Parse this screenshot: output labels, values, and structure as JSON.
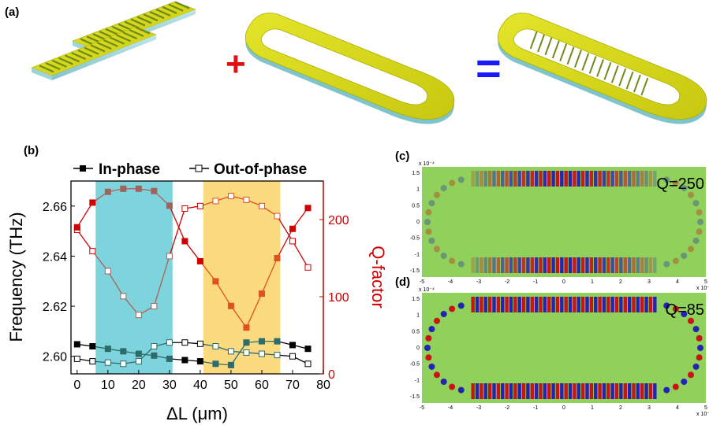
{
  "panels": {
    "a": "(a)",
    "b": "(b)",
    "c": "(c)",
    "d": "(d)"
  },
  "operators": {
    "plus": "+",
    "equals": "="
  },
  "colors": {
    "gold": "#d8d81a",
    "cyan_band": "#66cdd6",
    "yellow_band": "#fcd36a",
    "red_axis": "#d00000",
    "field_bg": "#8fd15a"
  },
  "chart_data": {
    "type": "line",
    "xlabel": "ΔL (μm)",
    "ylabel": "Frequency (THz)",
    "y2label": "Q-factor",
    "xlim": [
      -2,
      80
    ],
    "ylim": [
      2.593,
      2.67
    ],
    "y2lim": [
      0,
      250
    ],
    "xticks": [
      "0",
      "10",
      "20",
      "30",
      "40",
      "50",
      "60",
      "70",
      "80"
    ],
    "yticks": [
      "2.60",
      "2.62",
      "2.64",
      "2.66"
    ],
    "y2ticks": [
      "0",
      "100",
      "200"
    ],
    "legend": [
      "In-phase",
      "Out-of-phase"
    ],
    "x": [
      0,
      5,
      10,
      15,
      20,
      25,
      30,
      35,
      40,
      45,
      50,
      55,
      60,
      65,
      70,
      75
    ],
    "highlight_bands": [
      [
        6,
        31
      ],
      [
        41,
        66
      ]
    ],
    "series": [
      {
        "name": "In-phase",
        "axis": "left",
        "marker": "filled",
        "values": [
          2.6048,
          2.604,
          2.603,
          2.602,
          2.601,
          2.6003,
          2.599,
          2.5985,
          2.598,
          2.597,
          2.5965,
          2.6055,
          2.606,
          2.606,
          2.6045,
          2.603
        ]
      },
      {
        "name": "Out-of-phase",
        "axis": "left",
        "marker": "open",
        "values": [
          2.599,
          2.598,
          2.5975,
          2.597,
          2.598,
          2.604,
          2.6055,
          2.6055,
          2.605,
          2.604,
          2.602,
          2.6015,
          2.601,
          2.6005,
          2.6,
          2.597
        ]
      },
      {
        "name": "",
        "axis": "left",
        "marker": "open",
        "values": [
          2.6505,
          2.642,
          2.634,
          2.624,
          2.6165,
          2.62,
          2.64,
          2.659,
          2.66,
          2.662,
          2.664,
          2.6625,
          2.66,
          2.656,
          2.646,
          2.6355
        ]
      },
      {
        "name": "",
        "axis": "right",
        "marker": "filled",
        "values": [
          190,
          222,
          236,
          240,
          240,
          237,
          218,
          172,
          146,
          120,
          88,
          60,
          104,
          150,
          188,
          215
        ]
      }
    ]
  },
  "field_maps": [
    {
      "label": "Q=250",
      "y_ticks": [
        "1.5",
        "1",
        "0.5",
        "0",
        "-0.5",
        "-1",
        "-1.5"
      ],
      "x_ticks": [
        "-5",
        "-4",
        "-3",
        "-2",
        "-1",
        "0",
        "1",
        "2",
        "3",
        "4",
        "5"
      ],
      "y_exp": "x 10⁻⁴",
      "x_exp": "x 10⁻⁴"
    },
    {
      "label": "Q=85",
      "y_ticks": [
        "1.5",
        "1",
        "0.5",
        "0",
        "-0.5",
        "-1",
        "-1.5"
      ],
      "x_ticks": [
        "-5",
        "-4",
        "-3",
        "-2",
        "-1",
        "0",
        "1",
        "2",
        "3",
        "4",
        "5"
      ],
      "y_exp": "x 10⁻⁴",
      "x_exp": "x 10⁻⁴"
    }
  ]
}
